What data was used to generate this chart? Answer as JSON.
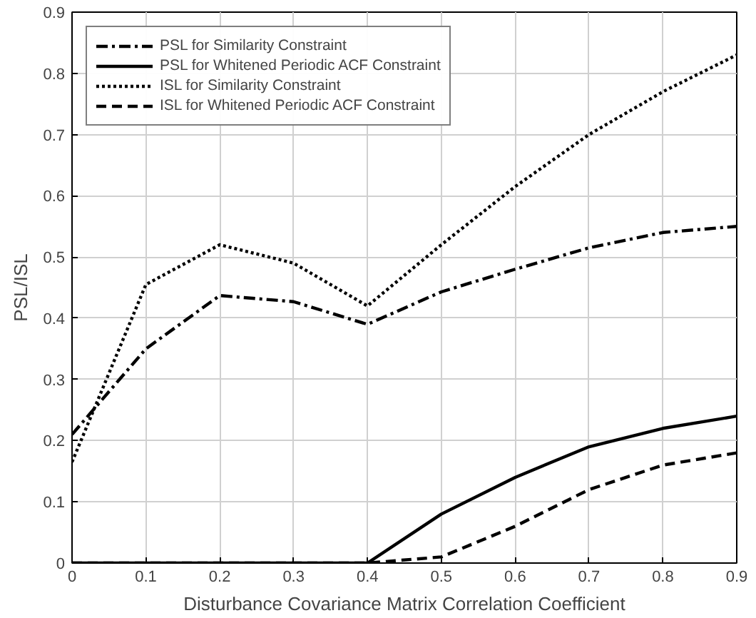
{
  "chart_data": {
    "type": "line",
    "xlabel": "Disturbance Covariance Matrix Correlation Coefficient",
    "ylabel": "PSL/ISL",
    "x": [
      0,
      0.1,
      0.2,
      0.3,
      0.4,
      0.5,
      0.6,
      0.7,
      0.8,
      0.9
    ],
    "series": [
      {
        "name": "PSL for Similarity Constraint",
        "color": "#000000",
        "line_style": "dashdot",
        "values": [
          0.21,
          0.35,
          0.437,
          0.427,
          0.39,
          0.443,
          0.48,
          0.515,
          0.54,
          0.55
        ]
      },
      {
        "name": "PSL for Whitened Periodic ACF Constraint",
        "color": "#000000",
        "line_style": "solid",
        "values": [
          0,
          0,
          0,
          0,
          0,
          0.08,
          0.14,
          0.19,
          0.22,
          0.24
        ]
      },
      {
        "name": "ISL for Similarity Constraint",
        "color": "#000000",
        "line_style": "dotted",
        "values": [
          0.165,
          0.455,
          0.52,
          0.49,
          0.42,
          0.52,
          0.615,
          0.7,
          0.77,
          0.83
        ]
      },
      {
        "name": "ISL for Whitened Periodic ACF Constraint",
        "color": "#000000",
        "line_style": "dashed",
        "values": [
          0,
          0,
          0,
          0,
          0,
          0.01,
          0.06,
          0.12,
          0.16,
          0.18
        ]
      }
    ],
    "xlim": [
      0,
      0.9
    ],
    "ylim": [
      0,
      0.9
    ],
    "xticks": [
      0,
      0.1,
      0.2,
      0.3,
      0.4,
      0.5,
      0.6,
      0.7,
      0.8,
      0.9
    ],
    "yticks": [
      0,
      0.1,
      0.2,
      0.3,
      0.4,
      0.5,
      0.6,
      0.7,
      0.8,
      0.9
    ],
    "grid": true,
    "legend": "top left",
    "marker": "none"
  }
}
